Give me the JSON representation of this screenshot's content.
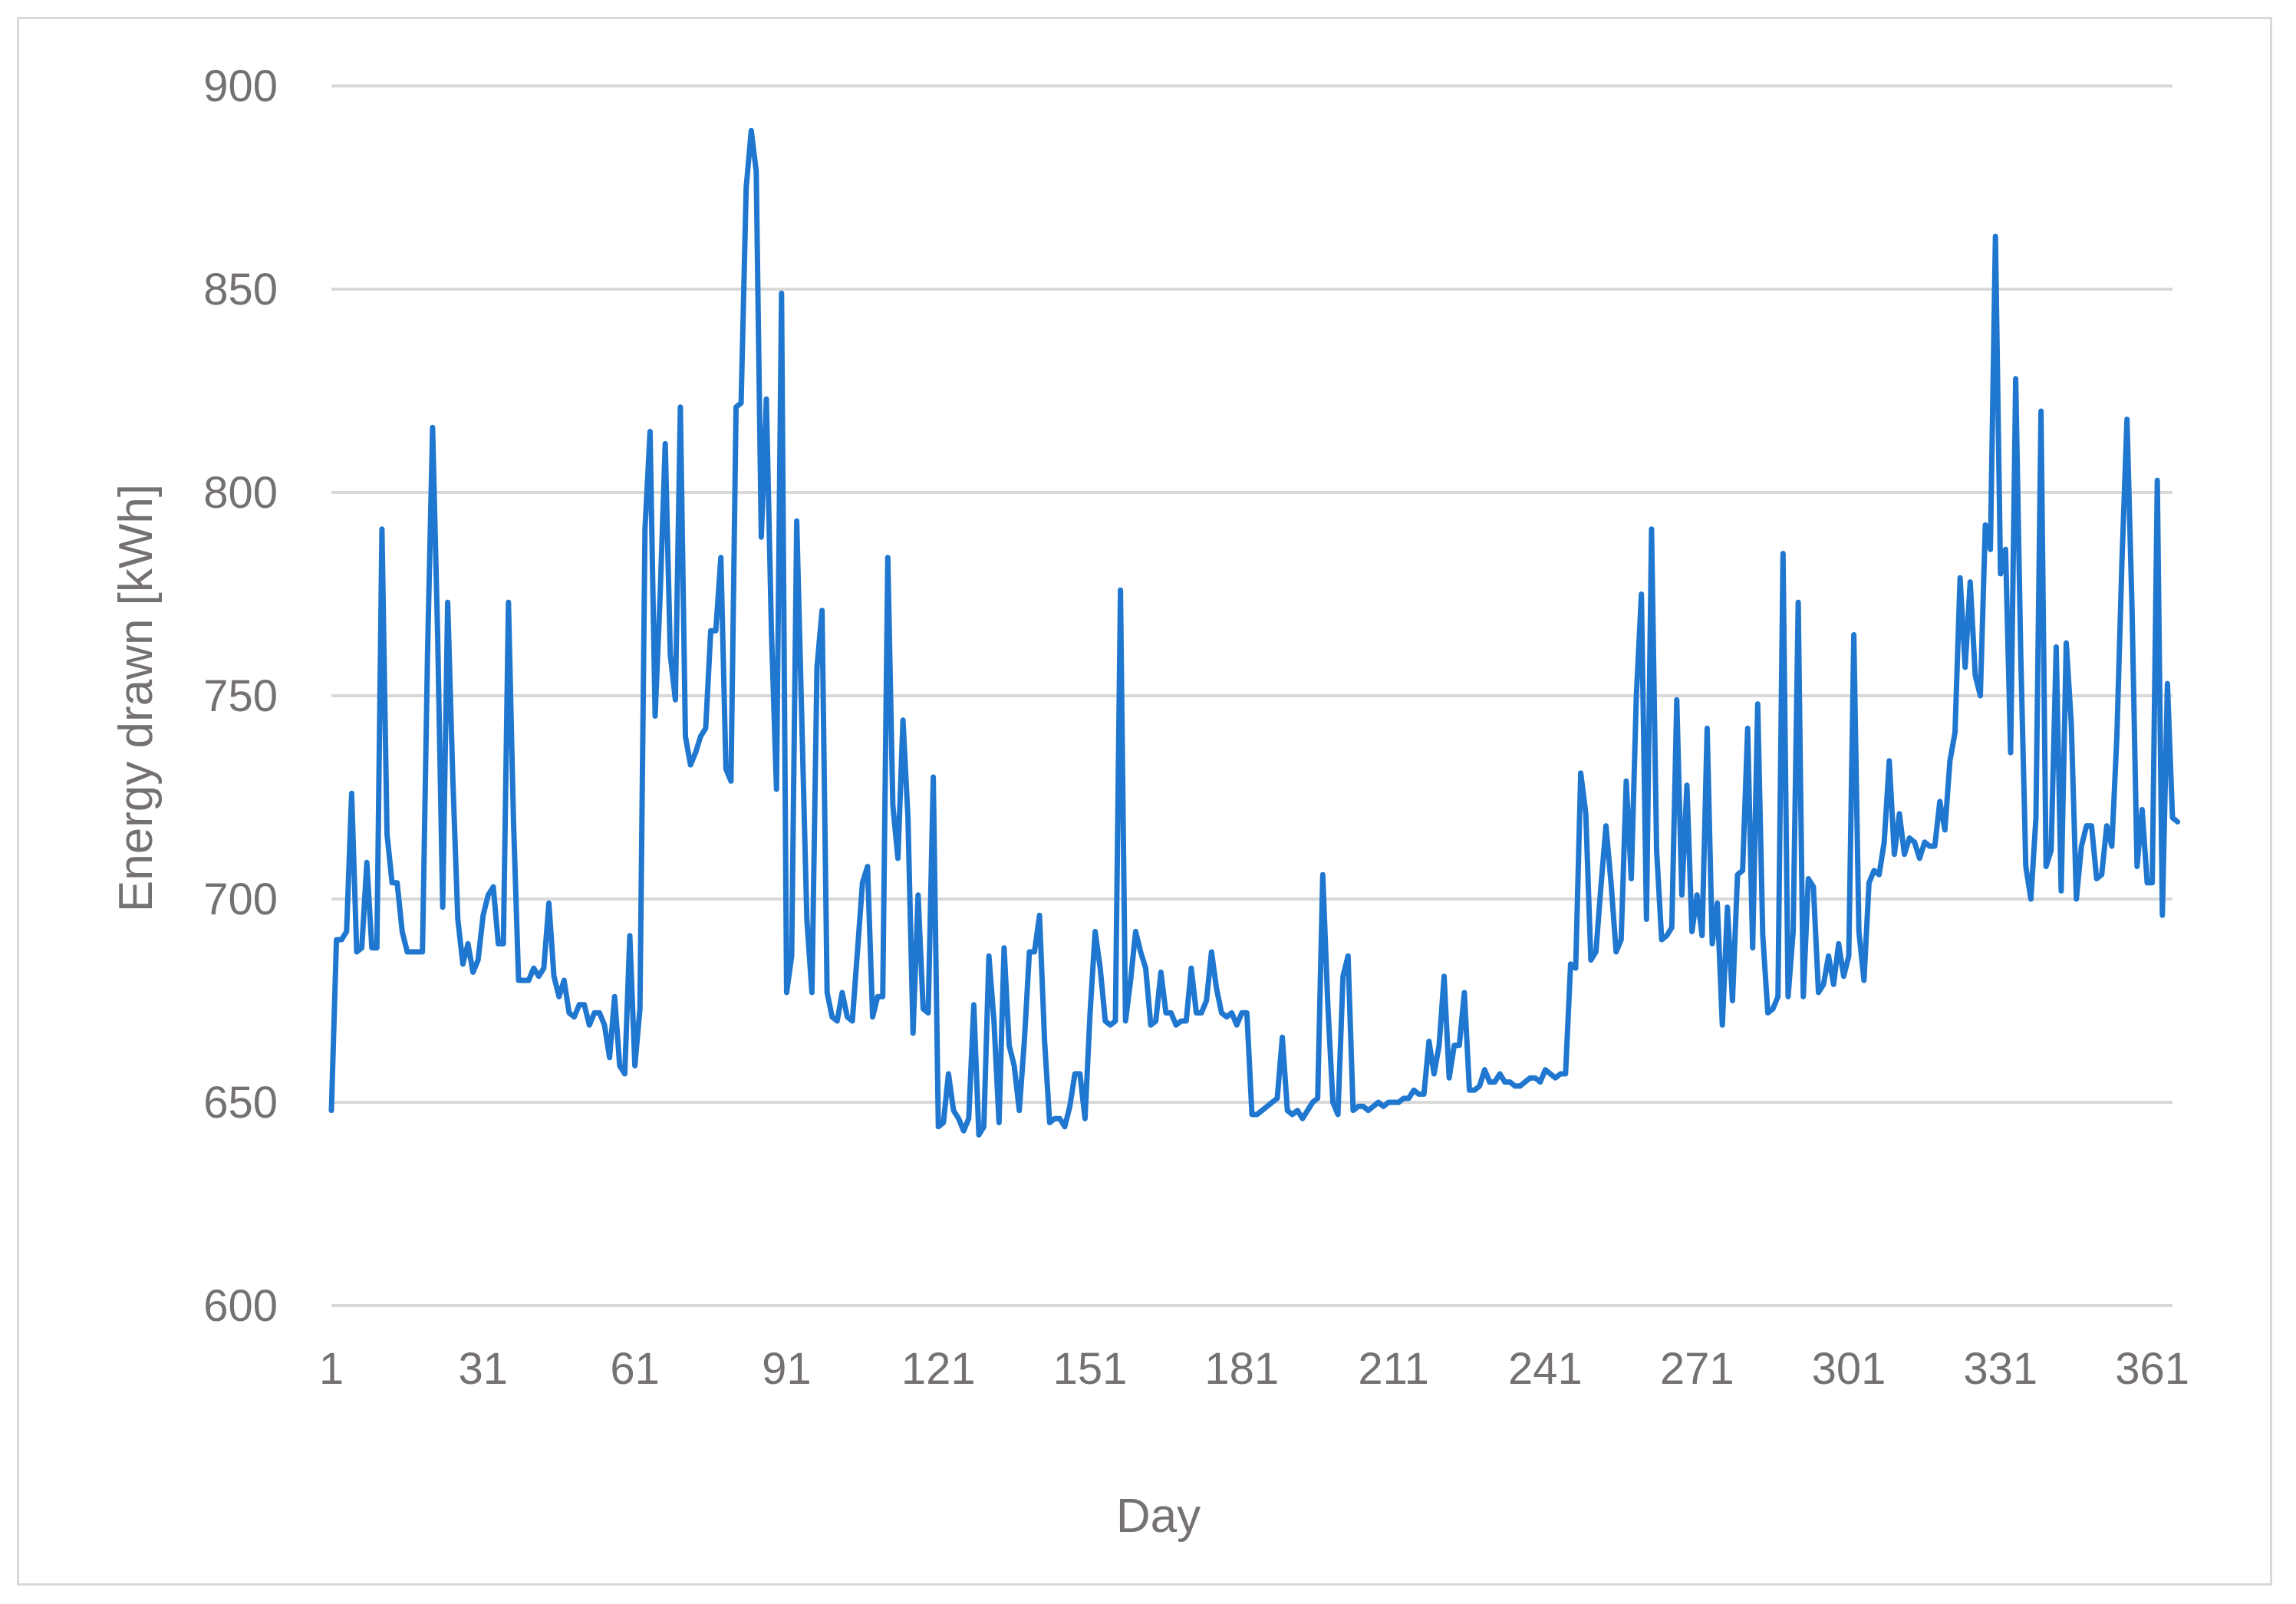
{
  "chart_data": {
    "type": "line",
    "title": "",
    "xlabel": "Day",
    "ylabel": "Energy drawn [kWh]",
    "xlim": [
      1,
      365
    ],
    "ylim": [
      600,
      900
    ],
    "x_ticks": [
      1,
      31,
      61,
      91,
      121,
      151,
      181,
      211,
      241,
      271,
      301,
      331,
      361
    ],
    "y_ticks": [
      600,
      650,
      700,
      750,
      800,
      850,
      900
    ],
    "grid": true,
    "legend": "none",
    "color": "#1f77d0",
    "series": [
      {
        "x_start": 1,
        "values": [
          648,
          690,
          690,
          692,
          726,
          687,
          688,
          709,
          688,
          688,
          791,
          716,
          704,
          704,
          692,
          687,
          687,
          687,
          687,
          760,
          816,
          765,
          698,
          773,
          730,
          695,
          684,
          689,
          682,
          685,
          696,
          701,
          703,
          689,
          689,
          773,
          719,
          680,
          680,
          680,
          683,
          681,
          683,
          699,
          681,
          676,
          680,
          672,
          671,
          674,
          674,
          669,
          672,
          672,
          669,
          661,
          676,
          659,
          657,
          691,
          659,
          673,
          791,
          815,
          745,
          775,
          812,
          760,
          749,
          821,
          740,
          733,
          736,
          740,
          742,
          766,
          766,
          784,
          732,
          729,
          821,
          822,
          875,
          889,
          879,
          789,
          823,
          766,
          727,
          849,
          677,
          686,
          793,
          744,
          695,
          677,
          757,
          771,
          677,
          671,
          670,
          677,
          671,
          670,
          687,
          704,
          708,
          671,
          676,
          676,
          784,
          723,
          710,
          744,
          720,
          667,
          701,
          673,
          672,
          730,
          644,
          645,
          657,
          648,
          646,
          643,
          646,
          674,
          642,
          644,
          686,
          670,
          645,
          688,
          664,
          659,
          648,
          665,
          687,
          687,
          696,
          665,
          645,
          646,
          646,
          644,
          649,
          657,
          657,
          646,
          672,
          692,
          683,
          670,
          669,
          670,
          776,
          670,
          680,
          692,
          687,
          683,
          669,
          670,
          682,
          672,
          672,
          669,
          670,
          670,
          683,
          672,
          672,
          675,
          687,
          678,
          672,
          671,
          672,
          669,
          672,
          672,
          647,
          647,
          648,
          649,
          650,
          651,
          666,
          648,
          647,
          648,
          646,
          648,
          650,
          651,
          706,
          674,
          650,
          647,
          681,
          686,
          648,
          649,
          649,
          648,
          649,
          650,
          649,
          650,
          650,
          650,
          651,
          651,
          653,
          652,
          652,
          665,
          657,
          664,
          681,
          656,
          664,
          664,
          677,
          653,
          653,
          654,
          658,
          655,
          655,
          657,
          655,
          655,
          654,
          654,
          655,
          656,
          656,
          655,
          658,
          657,
          656,
          657,
          657,
          684,
          683,
          731,
          721,
          685,
          687,
          703,
          718,
          704,
          687,
          690,
          729,
          705,
          750,
          775,
          695,
          791,
          712,
          690,
          691,
          693,
          749,
          701,
          728,
          692,
          701,
          691,
          742,
          689,
          699,
          669,
          698,
          675,
          706,
          707,
          742,
          688,
          748,
          691,
          672,
          673,
          676,
          785,
          676,
          692,
          773,
          676,
          705,
          703,
          677,
          679,
          686,
          679,
          689,
          681,
          686,
          765,
          692,
          680,
          704,
          707,
          706,
          714,
          734,
          711,
          721,
          711,
          715,
          714,
          710,
          714,
          713,
          713,
          724,
          717,
          734,
          741,
          779,
          757,
          778,
          755,
          750,
          792,
          786,
          863,
          780,
          786,
          736,
          828,
          760,
          708,
          700,
          720,
          820,
          708,
          712,
          762,
          702,
          763,
          743,
          700,
          713,
          718,
          718,
          705,
          706,
          718,
          713,
          740,
          783,
          818,
          771,
          708,
          722,
          704,
          704,
          803,
          696,
          753,
          720,
          719
        ]
      }
    ]
  }
}
